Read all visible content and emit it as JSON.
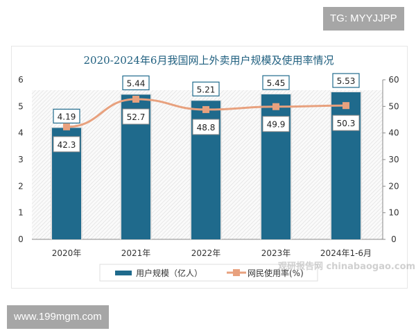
{
  "overlays": {
    "top_right": "TG: MYYJJPP",
    "bottom_left": "www.199mgm.com",
    "watermark": "观研报告网 chinabaogao.com"
  },
  "colors": {
    "bar": "#1f6a8c",
    "line": "#e8a17e",
    "title": "#1f5f7f"
  },
  "chart_data": {
    "type": "bar+line",
    "title": "2020-2024年6月我国网上外卖用户规模及使用率情况",
    "categories": [
      "2020年",
      "2021年",
      "2022年",
      "2023年",
      "2024年1-6月"
    ],
    "series": [
      {
        "name": "用户规模（亿人）",
        "type": "bar",
        "axis": "left",
        "values": [
          4.19,
          5.44,
          5.21,
          5.45,
          5.53
        ]
      },
      {
        "name": "网民使用率(%)",
        "type": "line",
        "axis": "right",
        "values": [
          42.3,
          52.7,
          48.8,
          49.9,
          50.3
        ]
      }
    ],
    "left_axis": {
      "ylim": [
        0,
        6
      ],
      "ticks": [
        "0",
        "1",
        "2",
        "3",
        "4",
        "5",
        "6"
      ]
    },
    "right_axis": {
      "ylim": [
        0,
        60
      ],
      "ticks": [
        "0",
        "10",
        "20",
        "30",
        "40",
        "50",
        "60"
      ]
    },
    "legend": "bottom",
    "grid": false
  }
}
